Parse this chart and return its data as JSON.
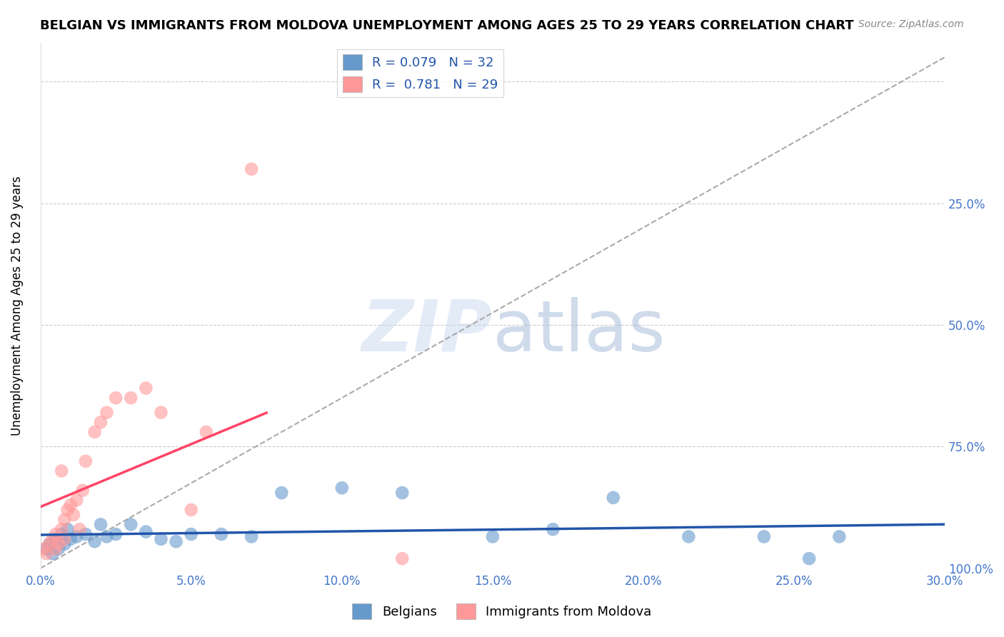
{
  "title": "BELGIAN VS IMMIGRANTS FROM MOLDOVA UNEMPLOYMENT AMONG AGES 25 TO 29 YEARS CORRELATION CHART",
  "source": "Source: ZipAtlas.com",
  "ylabel": "Unemployment Among Ages 25 to 29 years",
  "xlim": [
    0.0,
    0.3
  ],
  "ylim": [
    0.0,
    1.08
  ],
  "xtick_vals": [
    0.0,
    0.05,
    0.1,
    0.15,
    0.2,
    0.25,
    0.3
  ],
  "ytick_vals": [
    0.0,
    0.25,
    0.5,
    0.75,
    1.0
  ],
  "right_ytick_labels": [
    "100.0%",
    "75.0%",
    "50.0%",
    "25.0%",
    ""
  ],
  "legend_label1": "Belgians",
  "legend_label2": "Immigrants from Moldova",
  "blue_color": "#6699CC",
  "pink_color": "#FF9999",
  "blue_line_color": "#2255AA",
  "pink_line_color": "#FF4466",
  "watermark_zip": "ZIP",
  "watermark_atlas": "atlas",
  "belgians_x": [
    0.002,
    0.003,
    0.004,
    0.005,
    0.006,
    0.007,
    0.008,
    0.009,
    0.01,
    0.012,
    0.015,
    0.018,
    0.02,
    0.022,
    0.025,
    0.03,
    0.035,
    0.04,
    0.045,
    0.05,
    0.06,
    0.07,
    0.08,
    0.1,
    0.12,
    0.15,
    0.17,
    0.19,
    0.215,
    0.24,
    0.255,
    0.265
  ],
  "belgians_y": [
    0.04,
    0.05,
    0.03,
    0.06,
    0.04,
    0.07,
    0.05,
    0.08,
    0.06,
    0.065,
    0.07,
    0.055,
    0.09,
    0.065,
    0.07,
    0.09,
    0.075,
    0.06,
    0.055,
    0.07,
    0.07,
    0.065,
    0.155,
    0.165,
    0.155,
    0.065,
    0.08,
    0.145,
    0.065,
    0.065,
    0.02,
    0.065
  ],
  "moldova_x": [
    0.001,
    0.002,
    0.003,
    0.004,
    0.005,
    0.005,
    0.006,
    0.007,
    0.007,
    0.008,
    0.008,
    0.009,
    0.01,
    0.011,
    0.012,
    0.013,
    0.014,
    0.015,
    0.018,
    0.02,
    0.022,
    0.025,
    0.03,
    0.035,
    0.04,
    0.05,
    0.055,
    0.07,
    0.12
  ],
  "moldova_y": [
    0.04,
    0.03,
    0.05,
    0.06,
    0.04,
    0.07,
    0.05,
    0.08,
    0.2,
    0.06,
    0.1,
    0.12,
    0.13,
    0.11,
    0.14,
    0.08,
    0.16,
    0.22,
    0.28,
    0.3,
    0.32,
    0.35,
    0.35,
    0.37,
    0.32,
    0.12,
    0.28,
    0.82,
    0.02
  ]
}
